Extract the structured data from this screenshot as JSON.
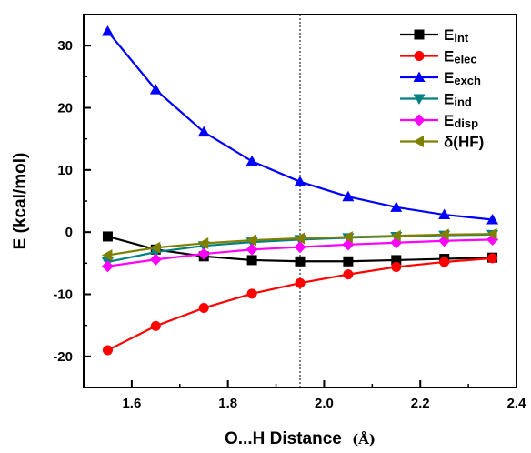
{
  "chart_data": {
    "type": "line",
    "xlabel": "O...H Distance",
    "xlabel_unit": "(Å)",
    "ylabel": "E (kcal/mol)",
    "xlim": [
      1.5,
      2.4
    ],
    "ylim": [
      -25,
      35
    ],
    "x_ticks": [
      1.6,
      1.8,
      2.0,
      2.2,
      2.4
    ],
    "x_tick_labels": [
      "1.6",
      "1.8",
      "2.0",
      "2.2",
      "2.4"
    ],
    "y_ticks": [
      -20,
      -10,
      0,
      10,
      20,
      30
    ],
    "y_tick_labels": [
      "-20",
      "-10",
      "0",
      "10",
      "20",
      "30"
    ],
    "grid": false,
    "reference_line_x": 1.95,
    "legend_position": "top-right",
    "x": [
      1.55,
      1.65,
      1.75,
      1.85,
      1.95,
      2.05,
      2.15,
      2.25,
      2.35
    ],
    "series": [
      {
        "name": "Eint",
        "name_main": "E",
        "name_sub": "int",
        "color": "#000000",
        "marker": "square",
        "values": [
          -0.7,
          -2.8,
          -3.9,
          -4.5,
          -4.7,
          -4.7,
          -4.5,
          -4.3,
          -4.1
        ]
      },
      {
        "name": "Eelec",
        "name_main": "E",
        "name_sub": "elec",
        "color": "#ff0000",
        "marker": "circle",
        "values": [
          -19.0,
          -15.1,
          -12.2,
          -9.9,
          -8.2,
          -6.8,
          -5.6,
          -4.8,
          -4.2
        ]
      },
      {
        "name": "Eexch",
        "name_main": "E",
        "name_sub": "exch",
        "color": "#0000ff",
        "marker": "triangle-up",
        "values": [
          32.3,
          22.9,
          16.1,
          11.4,
          8.1,
          5.7,
          4.0,
          2.8,
          2.0
        ]
      },
      {
        "name": "Eind",
        "name_main": "E",
        "name_sub": "ind",
        "color": "#008080",
        "marker": "triangle-down",
        "values": [
          -4.8,
          -3.2,
          -2.2,
          -1.6,
          -1.2,
          -0.9,
          -0.7,
          -0.5,
          -0.4
        ]
      },
      {
        "name": "Edisp",
        "name_main": "E",
        "name_sub": "disp",
        "color": "#ff00ff",
        "marker": "diamond",
        "values": [
          -5.5,
          -4.4,
          -3.5,
          -2.8,
          -2.4,
          -2.0,
          -1.7,
          -1.4,
          -1.2
        ]
      },
      {
        "name": "δ(HF)",
        "name_main": "δ(HF)",
        "name_sub": "",
        "color": "#808000",
        "marker": "triangle-left",
        "values": [
          -3.7,
          -2.5,
          -1.8,
          -1.3,
          -1.0,
          -0.8,
          -0.6,
          -0.4,
          -0.3
        ]
      }
    ]
  }
}
